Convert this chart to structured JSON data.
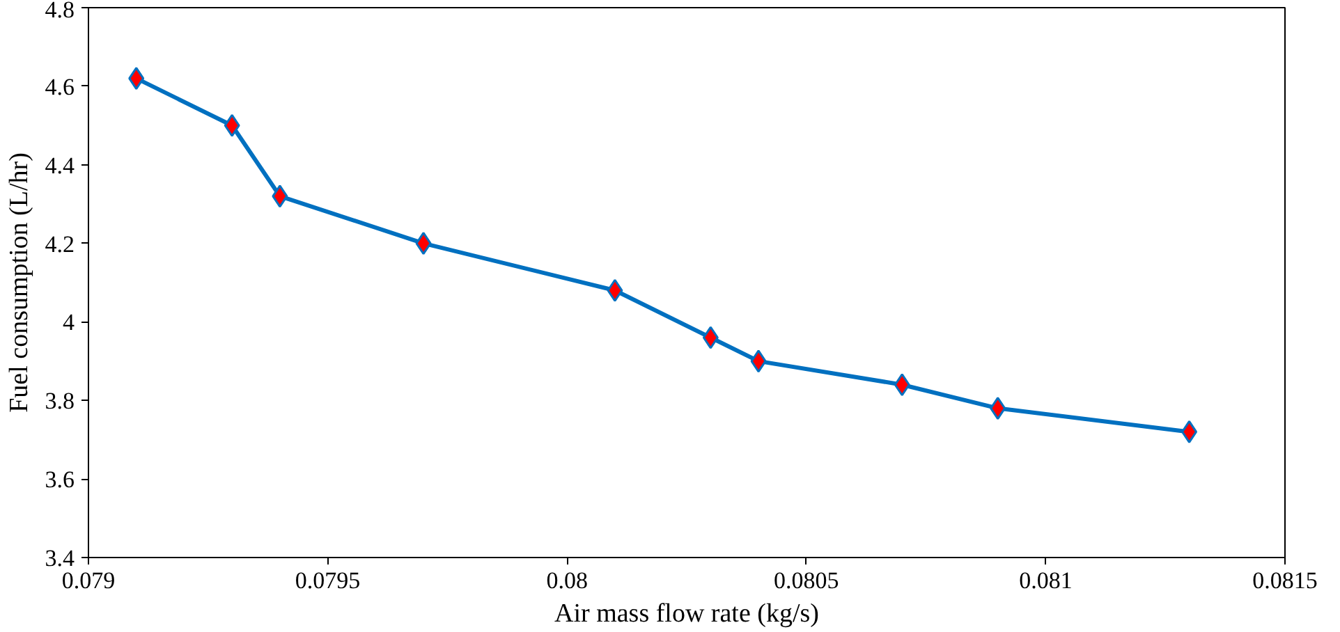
{
  "chart_data": {
    "type": "line",
    "xlabel": "Air mass flow rate (kg/s)",
    "ylabel": "Fuel consumption (L/hr)",
    "x": [
      0.0791,
      0.0793,
      0.0794,
      0.0797,
      0.0801,
      0.0803,
      0.0804,
      0.0807,
      0.0809,
      0.0813
    ],
    "series": [
      {
        "color": "#0070c0",
        "colors": [
          "#ff0000",
          "#ff0000",
          "#ff0000",
          "#ff0000",
          "#ff0000",
          "#ff0000",
          "#ff0000",
          "#ff0000",
          "#ff0000",
          "#ff0000"
        ],
        "values": [
          4.62,
          4.5,
          4.32,
          4.2,
          4.08,
          3.96,
          3.9,
          3.84,
          3.78,
          3.72
        ]
      }
    ],
    "xlim": [
      0.079,
      0.0815
    ],
    "xticks": [
      0.079,
      0.0795,
      0.08,
      0.0805,
      0.081,
      0.0815
    ],
    "ylim": [
      3.4,
      4.8
    ],
    "yticks": [
      3.4,
      3.6,
      3.8,
      4,
      4.2,
      4.4,
      4.6,
      4.8
    ],
    "grid": false,
    "marker": "diamond",
    "line_style": "solid"
  }
}
